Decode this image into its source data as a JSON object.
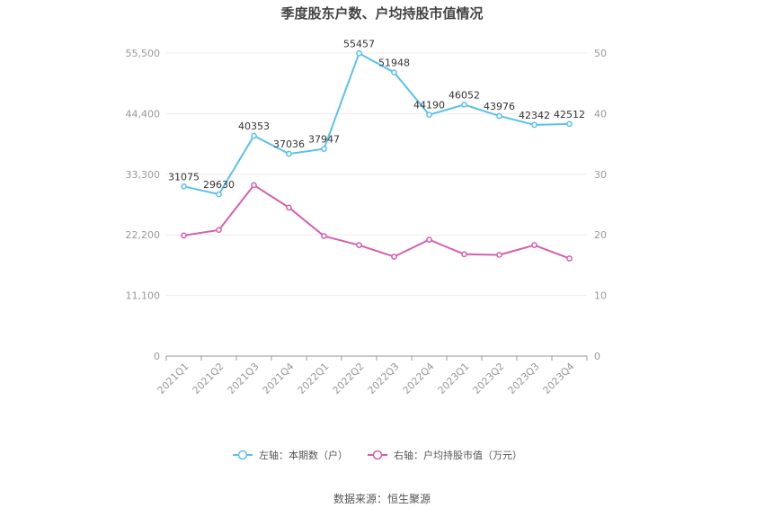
{
  "chart_data": {
    "type": "line",
    "title": "季度股东户数、户均持股市值情况",
    "categories": [
      "2021Q1",
      "2021Q2",
      "2021Q3",
      "2021Q4",
      "2022Q1",
      "2022Q2",
      "2022Q3",
      "2022Q4",
      "2023Q1",
      "2023Q2",
      "2023Q3",
      "2023Q4"
    ],
    "left_axis": {
      "ticks": [
        "0",
        "11,100",
        "22,200",
        "33,300",
        "44,400",
        "55,500"
      ],
      "ylim": [
        0,
        55500
      ]
    },
    "right_axis": {
      "ticks": [
        "0",
        "10",
        "20",
        "30",
        "40",
        "50"
      ],
      "ylim": [
        0,
        50
      ]
    },
    "series": [
      {
        "name": "左轴：本期数（户）",
        "axis": "left",
        "color": "#5bc0eb",
        "values": [
          31075,
          29630,
          40353,
          37036,
          37947,
          55457,
          51948,
          44190,
          46052,
          43976,
          42342,
          42512
        ],
        "labels": [
          "31075",
          "29630",
          "40353",
          "37036",
          "37947",
          "55457",
          "51948",
          "44190",
          "46052",
          "43976",
          "42342",
          "42512"
        ]
      },
      {
        "name": "右轴：户均持股市值（万元）",
        "axis": "right",
        "color": "#d45fae",
        "values": [
          19.9,
          20.8,
          28.2,
          24.5,
          19.8,
          18.3,
          16.4,
          19.2,
          16.8,
          16.7,
          18.3,
          16.1
        ]
      }
    ],
    "grid": true,
    "legend_position": "bottom"
  },
  "source": "数据来源：恒生聚源"
}
